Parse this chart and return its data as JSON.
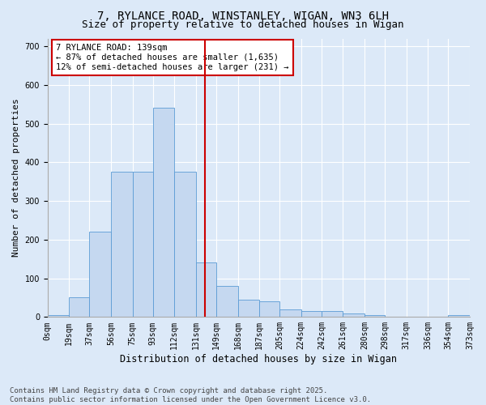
{
  "title1": "7, RYLANCE ROAD, WINSTANLEY, WIGAN, WN3 6LH",
  "title2": "Size of property relative to detached houses in Wigan",
  "xlabel": "Distribution of detached houses by size in Wigan",
  "ylabel": "Number of detached properties",
  "annotation_title": "7 RYLANCE ROAD: 139sqm",
  "annotation_line1": "← 87% of detached houses are smaller (1,635)",
  "annotation_line2": "12% of semi-detached houses are larger (231) →",
  "bin_edges": [
    0,
    19,
    37,
    56,
    75,
    93,
    112,
    131,
    149,
    168,
    187,
    205,
    224,
    242,
    261,
    280,
    298,
    317,
    336,
    354,
    373
  ],
  "bin_labels": [
    "0sqm",
    "19sqm",
    "37sqm",
    "56sqm",
    "75sqm",
    "93sqm",
    "112sqm",
    "131sqm",
    "149sqm",
    "168sqm",
    "187sqm",
    "205sqm",
    "224sqm",
    "242sqm",
    "261sqm",
    "280sqm",
    "298sqm",
    "317sqm",
    "336sqm",
    "354sqm",
    "373sqm"
  ],
  "bar_heights": [
    5,
    50,
    220,
    375,
    375,
    540,
    375,
    140,
    80,
    45,
    40,
    20,
    15,
    15,
    10,
    5,
    0,
    0,
    0,
    5
  ],
  "bar_color": "#c5d8f0",
  "bar_edge_color": "#5b9bd5",
  "vline_color": "#cc0000",
  "vline_x": 139,
  "ylim": [
    0,
    720
  ],
  "yticks": [
    0,
    100,
    200,
    300,
    400,
    500,
    600,
    700
  ],
  "background_color": "#dce9f8",
  "annotation_box_color": "#ffffff",
  "annotation_box_edge": "#cc0000",
  "footer_text": "Contains HM Land Registry data © Crown copyright and database right 2025.\nContains public sector information licensed under the Open Government Licence v3.0.",
  "title1_fontsize": 10,
  "title2_fontsize": 9,
  "xlabel_fontsize": 8.5,
  "ylabel_fontsize": 8,
  "tick_fontsize": 7,
  "annotation_fontsize": 7.5,
  "footer_fontsize": 6.5
}
